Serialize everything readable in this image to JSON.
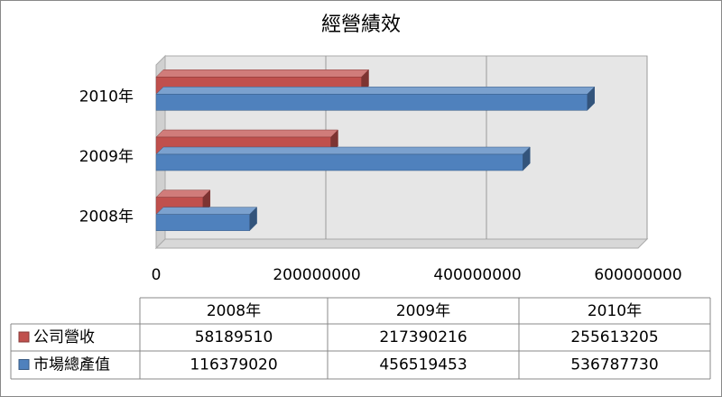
{
  "chart_data": {
    "type": "bar",
    "orientation": "horizontal",
    "title": "經營績效",
    "categories": [
      "2008年",
      "2009年",
      "2010年"
    ],
    "series": [
      {
        "name": "公司營收",
        "color": "#c0504d",
        "values": [
          58189510,
          217390216,
          255613205
        ]
      },
      {
        "name": "市場總產值",
        "color": "#4f81bd",
        "values": [
          116379020,
          456519453,
          536787730
        ]
      }
    ],
    "xlim": [
      0,
      600000000
    ],
    "xticks": [
      0,
      200000000,
      400000000,
      600000000
    ],
    "grid": true,
    "data_table": true
  }
}
